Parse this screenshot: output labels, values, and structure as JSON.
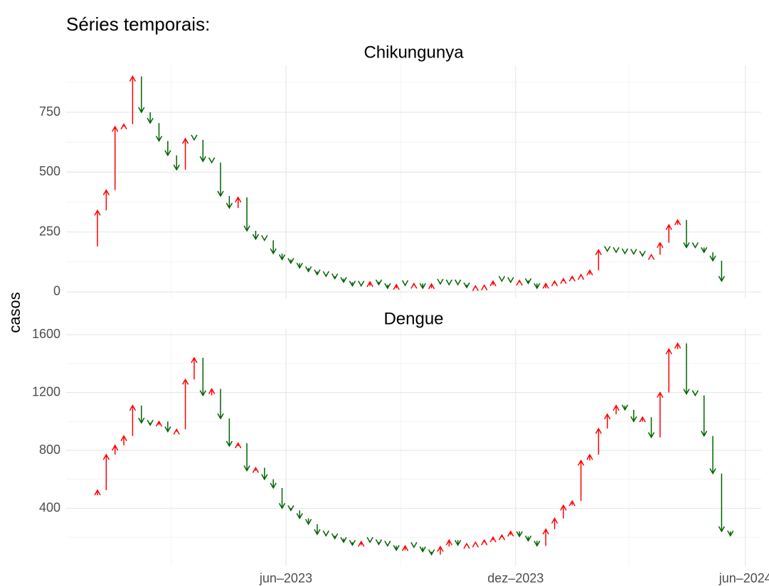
{
  "title": "Séries temporais:",
  "y_label": "casos",
  "xlim": [
    -3.56,
    75.5
  ],
  "xticks": [
    {
      "value": 21.44,
      "label": "jun–2023"
    },
    {
      "value": 47.57,
      "label": "dez–2023"
    },
    {
      "value": 73.7,
      "label": "jun–2024"
    }
  ],
  "xminor": [
    8.41,
    34.47,
    60.44
  ],
  "up_color": "#ff0000",
  "down_color": "#006400",
  "chart_data": [
    {
      "type": "arrow",
      "title": "Chikungunya",
      "x": [
        -1,
        0,
        1,
        2,
        3,
        4,
        5,
        6,
        7,
        8,
        9,
        10,
        11,
        12,
        13,
        14,
        15,
        16,
        17,
        18,
        19,
        20,
        21,
        22,
        23,
        24,
        25,
        26,
        27,
        28,
        29,
        30,
        31,
        32,
        33,
        34,
        35,
        36,
        37,
        38,
        39,
        40,
        41,
        42,
        43,
        44,
        45,
        46,
        47,
        48,
        49,
        50,
        51,
        52,
        53,
        54,
        55,
        56,
        57,
        58,
        59,
        60,
        61,
        62,
        63,
        64,
        65,
        66,
        67,
        68,
        69,
        70,
        71
      ],
      "values": [
        190,
        340,
        425,
        690,
        700,
        900,
        750,
        705,
        630,
        570,
        510,
        640,
        635,
        545,
        540,
        400,
        350,
        395,
        255,
        220,
        215,
        160,
        135,
        120,
        100,
        85,
        72,
        65,
        55,
        40,
        25,
        25,
        42,
        30,
        15,
        30,
        27,
        35,
        15,
        33,
        33,
        30,
        30,
        18,
        25,
        28,
        45,
        45,
        40,
        48,
        35,
        15,
        35,
        45,
        55,
        65,
        72,
        90,
        175,
        170,
        165,
        160,
        158,
        150,
        155,
        205,
        280,
        300,
        185,
        185,
        165,
        130,
        45
      ],
      "ylim": [
        -27,
        946
      ],
      "yticks": [
        0,
        250,
        500,
        750
      ],
      "yminor": [
        125,
        375,
        625,
        875
      ]
    },
    {
      "type": "arrow",
      "title": "Dengue",
      "x": [
        -1,
        0,
        1,
        2,
        3,
        4,
        5,
        6,
        7,
        8,
        9,
        10,
        11,
        12,
        13,
        14,
        15,
        16,
        17,
        18,
        19,
        20,
        21,
        22,
        23,
        24,
        25,
        26,
        27,
        28,
        29,
        30,
        31,
        32,
        33,
        34,
        35,
        36,
        37,
        38,
        39,
        40,
        41,
        42,
        43,
        44,
        45,
        46,
        47,
        48,
        49,
        50,
        51,
        52,
        53,
        54,
        55,
        56,
        57,
        58,
        59,
        60,
        61,
        62,
        63,
        64,
        65,
        66,
        67,
        68,
        69,
        70,
        71,
        72
      ],
      "values": [
        490,
        525,
        770,
        835,
        900,
        1110,
        990,
        975,
        1000,
        930,
        945,
        1290,
        1440,
        1180,
        1225,
        1020,
        830,
        850,
        660,
        680,
        600,
        540,
        400,
        385,
        330,
        290,
        220,
        210,
        190,
        165,
        145,
        170,
        165,
        150,
        140,
        110,
        140,
        130,
        100,
        80,
        135,
        180,
        145,
        155,
        165,
        180,
        200,
        215,
        240,
        205,
        175,
        140,
        255,
        330,
        420,
        450,
        730,
        770,
        950,
        1050,
        1110,
        1080,
        1000,
        1030,
        890,
        1200,
        1500,
        1540,
        1190,
        1180,
        900,
        640,
        240,
        210
      ],
      "ylim": [
        0,
        1640
      ],
      "yticks": [
        400,
        800,
        1200,
        1600
      ],
      "yminor": [
        200,
        600,
        1000,
        1400
      ]
    }
  ]
}
